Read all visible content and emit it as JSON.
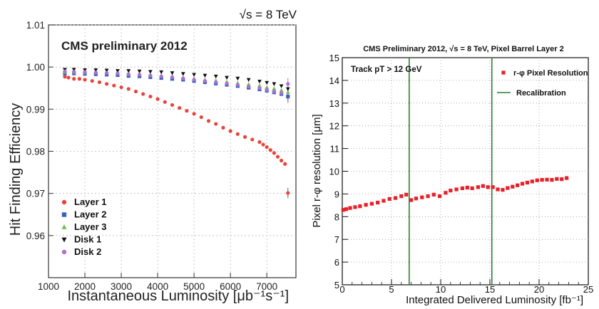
{
  "chart_data": [
    {
      "type": "scatter",
      "energy_label": "√s = 8 TeV",
      "inner_title": "CMS preliminary 2012",
      "xlabel": "Instantaneous Luminosity [μb⁻¹s⁻¹]",
      "ylabel": "Hit Finding Efficiency",
      "xlim": [
        1000,
        7800
      ],
      "ylim": [
        0.95,
        1.01
      ],
      "xticks": [
        "1000",
        "2000",
        "3000",
        "4000",
        "5000",
        "6000",
        "7000"
      ],
      "yticks": [
        "0.96",
        "0.97",
        "0.98",
        "0.99",
        "1.00",
        "1.01"
      ],
      "grid": true,
      "legend_position": "bottom-left",
      "series": [
        {
          "name": "Layer 1",
          "color": "#e8453c",
          "marker": "circle",
          "x": [
            1450,
            1550,
            1700,
            1850,
            2000,
            2200,
            2400,
            2600,
            2800,
            3000,
            3200,
            3400,
            3600,
            3800,
            4000,
            4200,
            4400,
            4600,
            4800,
            5000,
            5200,
            5400,
            5600,
            5800,
            6000,
            6200,
            6400,
            6600,
            6800,
            6900,
            7000,
            7100,
            7200,
            7300,
            7400,
            7500,
            7580
          ],
          "y": [
            0.9977,
            0.9975,
            0.9972,
            0.9972,
            0.997,
            0.9967,
            0.9964,
            0.996,
            0.9956,
            0.9952,
            0.9948,
            0.9942,
            0.9936,
            0.993,
            0.9924,
            0.9917,
            0.991,
            0.9903,
            0.9896,
            0.9889,
            0.9881,
            0.9872,
            0.9865,
            0.9856,
            0.9848,
            0.9841,
            0.9834,
            0.9828,
            0.9822,
            0.9816,
            0.981,
            0.9803,
            0.9796,
            0.9787,
            0.9778,
            0.977,
            0.9701
          ]
        },
        {
          "name": "Layer 2",
          "color": "#3a5fc8",
          "marker": "square",
          "x": [
            1450,
            1700,
            2000,
            2300,
            2600,
            2900,
            3200,
            3500,
            3800,
            4100,
            4400,
            4700,
            5000,
            5300,
            5600,
            5900,
            6200,
            6500,
            6800,
            7000,
            7200,
            7400,
            7580
          ],
          "y": [
            0.9985,
            0.9985,
            0.9984,
            0.9983,
            0.9982,
            0.9981,
            0.9979,
            0.9978,
            0.9976,
            0.9974,
            0.9972,
            0.997,
            0.9967,
            0.9964,
            0.9961,
            0.9958,
            0.9955,
            0.9951,
            0.9947,
            0.9944,
            0.994,
            0.9936,
            0.993
          ]
        },
        {
          "name": "Layer 3",
          "color": "#6cbf4a",
          "marker": "triangle-up",
          "x": [
            1450,
            1700,
            2000,
            2300,
            2600,
            2900,
            3200,
            3500,
            3800,
            4100,
            4400,
            4700,
            5000,
            5300,
            5600,
            5900,
            6200,
            6500,
            6800,
            7000,
            7200,
            7400,
            7580
          ],
          "y": [
            0.9988,
            0.9988,
            0.9987,
            0.9987,
            0.9986,
            0.9985,
            0.9984,
            0.9982,
            0.9981,
            0.9979,
            0.9977,
            0.9975,
            0.9973,
            0.997,
            0.9968,
            0.9965,
            0.9962,
            0.9959,
            0.9956,
            0.9952,
            0.9949,
            0.9945,
            0.994
          ]
        },
        {
          "name": "Disk 1",
          "color": "#111111",
          "marker": "triangle-down",
          "x": [
            1450,
            1700,
            2000,
            2300,
            2600,
            2900,
            3200,
            3500,
            3800,
            4100,
            4400,
            4700,
            5000,
            5300,
            5600,
            5900,
            6200,
            6500,
            6800,
            7000,
            7200,
            7400,
            7580
          ],
          "y": [
            0.9994,
            0.9994,
            0.9993,
            0.9993,
            0.9992,
            0.9991,
            0.9991,
            0.999,
            0.9989,
            0.9988,
            0.9986,
            0.9984,
            0.9982,
            0.998,
            0.9978,
            0.9975,
            0.9973,
            0.997,
            0.9966,
            0.9963,
            0.996,
            0.9955,
            0.9948
          ]
        },
        {
          "name": "Disk 2",
          "color": "#b06fd0",
          "marker": "circle",
          "x": [
            1450,
            1700,
            2000,
            2300,
            2600,
            2900,
            3200,
            3500,
            3800,
            4100,
            4400,
            4700,
            5000,
            5300,
            5600,
            5900,
            6200,
            6500,
            6800,
            7000,
            7200,
            7400,
            7580
          ],
          "y": [
            0.999,
            0.9989,
            0.9988,
            0.9987,
            0.9986,
            0.9985,
            0.9983,
            0.9982,
            0.998,
            0.9978,
            0.9976,
            0.9973,
            0.997,
            0.9967,
            0.9964,
            0.9961,
            0.9958,
            0.9954,
            0.995,
            0.9946,
            0.9942,
            0.9938,
            0.996
          ]
        }
      ]
    },
    {
      "type": "scatter",
      "title": "CMS Preliminary 2012, √s = 8 TeV, Pixel Barrel Layer 2",
      "annotation": "Track pT > 12 GeV",
      "xlabel": "Integrated Delivered Luminosity [fb⁻¹]",
      "ylabel": "Pixel r-φ resolution [μm]",
      "xlim": [
        0,
        25
      ],
      "ylim": [
        5,
        15
      ],
      "xticks": [
        "0",
        "5",
        "10",
        "15",
        "20",
        "25"
      ],
      "yticks": [
        "5",
        "6",
        "7",
        "8",
        "9",
        "10",
        "11",
        "12",
        "13",
        "14",
        "15"
      ],
      "grid": true,
      "legend_position": "top-right",
      "vlines": [
        6.8,
        15.2
      ],
      "vline_color": "#2e7d32",
      "series": [
        {
          "name": "r-φ Pixel Resolution",
          "color": "#e8202a",
          "marker": "square",
          "x": [
            0.1,
            0.4,
            0.8,
            1.3,
            1.8,
            2.4,
            3.0,
            3.6,
            4.2,
            4.8,
            5.4,
            6.0,
            6.5,
            7.0,
            7.5,
            8.1,
            8.7,
            9.3,
            9.9,
            10.5,
            11.0,
            11.6,
            12.2,
            12.7,
            13.2,
            13.8,
            14.3,
            14.8,
            15.3,
            15.8,
            16.3,
            16.8,
            17.3,
            17.8,
            18.3,
            18.8,
            19.3,
            19.8,
            20.3,
            20.8,
            21.3,
            21.8,
            22.3,
            22.8
          ],
          "y": [
            8.3,
            8.33,
            8.38,
            8.42,
            8.46,
            8.52,
            8.57,
            8.62,
            8.7,
            8.78,
            8.82,
            8.9,
            8.97,
            8.73,
            8.8,
            8.85,
            8.9,
            8.97,
            8.9,
            9.05,
            9.15,
            9.2,
            9.25,
            9.28,
            9.25,
            9.3,
            9.35,
            9.3,
            9.3,
            9.2,
            9.18,
            9.26,
            9.32,
            9.38,
            9.45,
            9.5,
            9.55,
            9.6,
            9.62,
            9.63,
            9.62,
            9.66,
            9.65,
            9.7
          ]
        }
      ]
    }
  ],
  "legend_right_vline_label": "Recalibration"
}
